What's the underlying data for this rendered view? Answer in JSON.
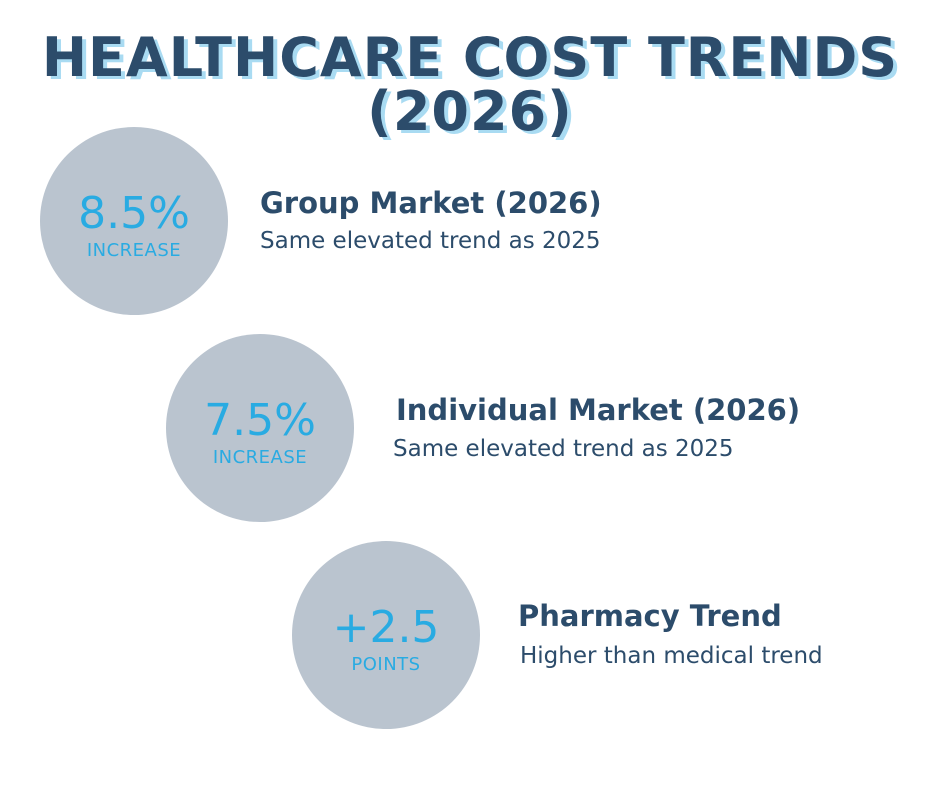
{
  "title": {
    "line1": "HEALTHCARE COST TRENDS",
    "line2": "(2026)"
  },
  "colors": {
    "title": "#2C4C6B",
    "title_shadow": "#A9DBF2",
    "circle": "#BAC4CF",
    "accent": "#29ABE2"
  },
  "items": [
    {
      "value": "8.5%",
      "unit": "INCREASE",
      "heading": "Group Market (2026)",
      "subtitle": "Same elevated trend as 2025"
    },
    {
      "value": "7.5%",
      "unit": "INCREASE",
      "heading": "Individual Market (2026)",
      "subtitle": "Same elevated trend as 2025"
    },
    {
      "value": "+2.5",
      "unit": "POINTS",
      "heading": "Pharmacy Trend",
      "subtitle": "Higher than medical trend"
    }
  ]
}
